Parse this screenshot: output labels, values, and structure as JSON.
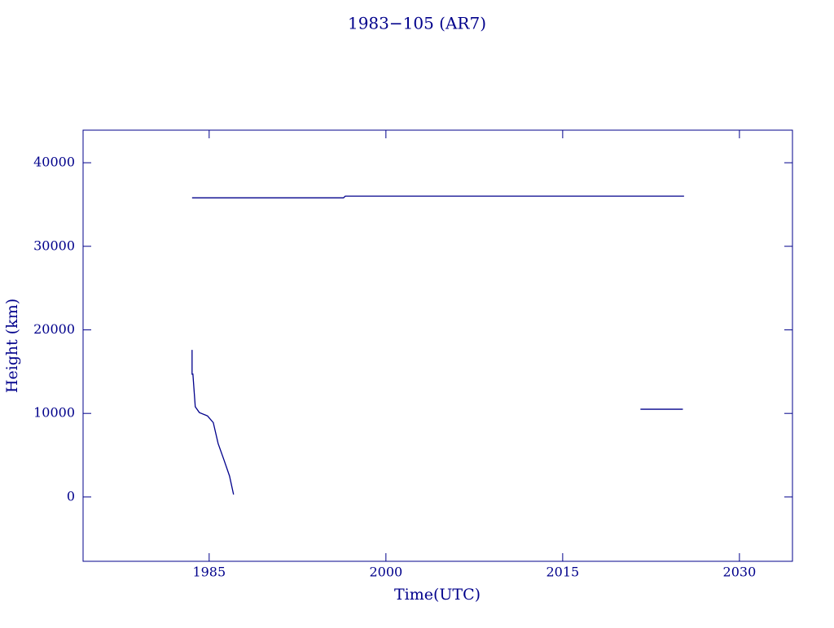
{
  "chart_data": {
    "type": "line",
    "title": "1983−105 (AR7)",
    "x_label": "Time(UTC)",
    "y_label": "Height (km)",
    "x": [
      1983.55,
      1983.55,
      1983.62,
      1983.82,
      1984.17,
      1984.86,
      1985.35,
      1985.76,
      1986.24,
      1986.73,
      1987.07,
      null,
      1983.55,
      1996.4,
      1996.55,
      2025.3,
      null,
      2021.6,
      2025.2
    ],
    "series": [
      {
        "color": "#00008b",
        "values": [
          17600,
          14700,
          14700,
          10800,
          10100,
          9700,
          8900,
          6400,
          4500,
          2500,
          300,
          null,
          35800,
          35800,
          36000,
          36000,
          null,
          10500,
          10500
        ]
      }
    ],
    "xlim": [
      1974.3,
      2034.5
    ],
    "xticks": [
      1985,
      2000,
      2015,
      2030
    ],
    "ylim": [
      -7700,
      43900
    ],
    "yticks": [
      0,
      10000,
      20000,
      30000,
      40000
    ]
  }
}
